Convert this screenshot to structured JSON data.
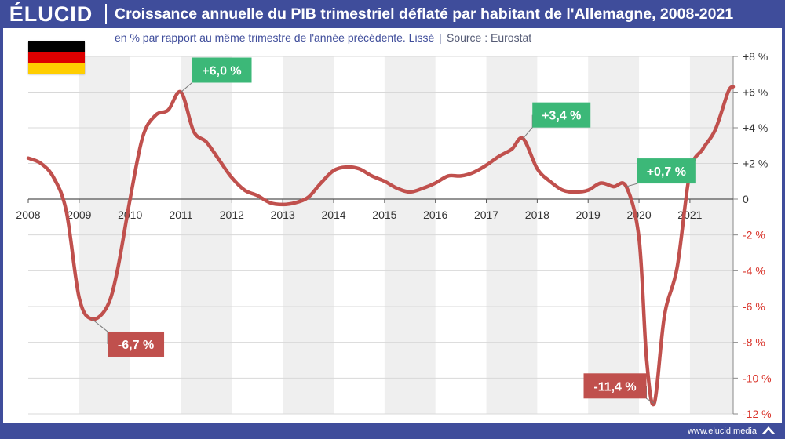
{
  "header": {
    "logo": "ÉLUCID",
    "title": "Croissance annuelle du PIB trimestriel déflaté par habitant de l'Allemagne, 2008-2021",
    "subtitle": "en % par rapport au même trimestre de l'année précédente. Lissé",
    "source": "Source : Eurostat"
  },
  "footer": {
    "url": "www.elucid.media"
  },
  "flag": {
    "country": "Allemagne",
    "stripes": [
      "#000000",
      "#dd0000",
      "#ffce00"
    ]
  },
  "colors": {
    "brand": "#3f4d9b",
    "line": "#c0504d",
    "positive_label": "#3cb878",
    "negative_label": "#c0504d",
    "negative_tick": "#d9342b",
    "band": "#efefef"
  },
  "chart_data": {
    "type": "line",
    "title": "Croissance annuelle du PIB trimestriel déflaté par habitant de l'Allemagne, 2008-2021",
    "xlabel": "",
    "ylabel": "",
    "x_range": [
      2008,
      2021.85
    ],
    "ylim": [
      -12,
      8
    ],
    "x_ticks": [
      "2008",
      "2009",
      "2010",
      "2011",
      "2012",
      "2013",
      "2014",
      "2015",
      "2016",
      "2017",
      "2018",
      "2019",
      "2020",
      "2021"
    ],
    "y_ticks": [
      {
        "value": 8,
        "label": "+8 %"
      },
      {
        "value": 6,
        "label": "+6 %"
      },
      {
        "value": 4,
        "label": "+4 %"
      },
      {
        "value": 2,
        "label": "+2 %"
      },
      {
        "value": 0,
        "label": "0"
      },
      {
        "value": -2,
        "label": "-2 %"
      },
      {
        "value": -4,
        "label": "-4 %"
      },
      {
        "value": -6,
        "label": "-6 %"
      },
      {
        "value": -8,
        "label": "-8 %"
      },
      {
        "value": -10,
        "label": "-10 %"
      },
      {
        "value": -12,
        "label": "-12 %"
      }
    ],
    "series": [
      {
        "name": "Croissance annuelle du PIB par habitant",
        "x": [
          2008.0,
          2008.25,
          2008.5,
          2008.75,
          2009.0,
          2009.25,
          2009.55,
          2009.75,
          2010.0,
          2010.25,
          2010.5,
          2010.75,
          2011.0,
          2011.25,
          2011.5,
          2011.75,
          2012.0,
          2012.25,
          2012.5,
          2012.75,
          2013.0,
          2013.25,
          2013.5,
          2013.75,
          2014.0,
          2014.25,
          2014.5,
          2014.75,
          2015.0,
          2015.25,
          2015.5,
          2015.75,
          2016.0,
          2016.25,
          2016.5,
          2016.75,
          2017.0,
          2017.25,
          2017.5,
          2017.72,
          2018.0,
          2018.25,
          2018.5,
          2018.75,
          2019.0,
          2019.25,
          2019.5,
          2019.75,
          2020.0,
          2020.15,
          2020.3,
          2020.5,
          2020.75,
          2021.0,
          2021.25,
          2021.5,
          2021.75,
          2021.85
        ],
        "y": [
          2.3,
          2.0,
          1.2,
          -0.7,
          -5.5,
          -6.7,
          -6.0,
          -4.0,
          0.0,
          3.5,
          4.7,
          5.0,
          6.0,
          3.8,
          3.2,
          2.2,
          1.2,
          0.5,
          0.2,
          -0.2,
          -0.3,
          -0.2,
          0.1,
          0.9,
          1.6,
          1.8,
          1.7,
          1.3,
          1.0,
          0.6,
          0.4,
          0.6,
          0.9,
          1.3,
          1.3,
          1.5,
          1.9,
          2.4,
          2.8,
          3.4,
          1.7,
          1.0,
          0.5,
          0.4,
          0.5,
          0.9,
          0.7,
          0.7,
          -2.2,
          -9.0,
          -11.4,
          -6.5,
          -3.8,
          1.5,
          2.8,
          3.9,
          6.0,
          6.3
        ]
      }
    ],
    "annotations": [
      {
        "label": "-6,7 %",
        "x": 2009.25,
        "y": -6.7,
        "kind": "min"
      },
      {
        "label": "+6,0 %",
        "x": 2011.0,
        "y": 6.0,
        "kind": "max"
      },
      {
        "label": "+3,4 %",
        "x": 2017.72,
        "y": 3.4,
        "kind": "max"
      },
      {
        "label": "+0,7 %",
        "x": 2019.75,
        "y": 0.7,
        "kind": "max"
      },
      {
        "label": "-11,4 %",
        "x": 2020.3,
        "y": -11.4,
        "kind": "min"
      }
    ]
  }
}
